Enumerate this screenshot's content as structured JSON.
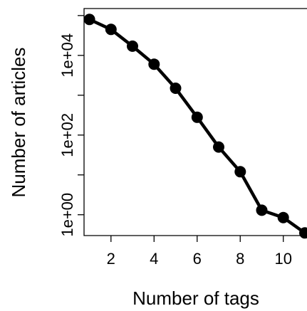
{
  "chart_data": {
    "type": "line",
    "xlabel": "Number of tags",
    "ylabel": "Number of articles",
    "x": [
      1,
      2,
      3,
      4,
      5,
      6,
      7,
      8,
      9,
      10,
      11
    ],
    "y": [
      80000,
      45000,
      17000,
      6000,
      1500,
      280,
      50,
      12,
      1.3,
      0.85,
      0.35
    ],
    "xlim": [
      0.75,
      11.1
    ],
    "ylim": [
      0.3,
      150000
    ],
    "y_scale": "log",
    "x_ticks": [
      2,
      4,
      6,
      8,
      10
    ],
    "x_tick_labels": [
      "2",
      "4",
      "6",
      "8",
      "10"
    ],
    "y_ticks": [
      1,
      10,
      100,
      1000,
      10000,
      100000
    ],
    "y_tick_labels": [
      "1e+00",
      "",
      "1e+02",
      "",
      "1e+04",
      ""
    ],
    "markers": true,
    "color": "#000000"
  }
}
